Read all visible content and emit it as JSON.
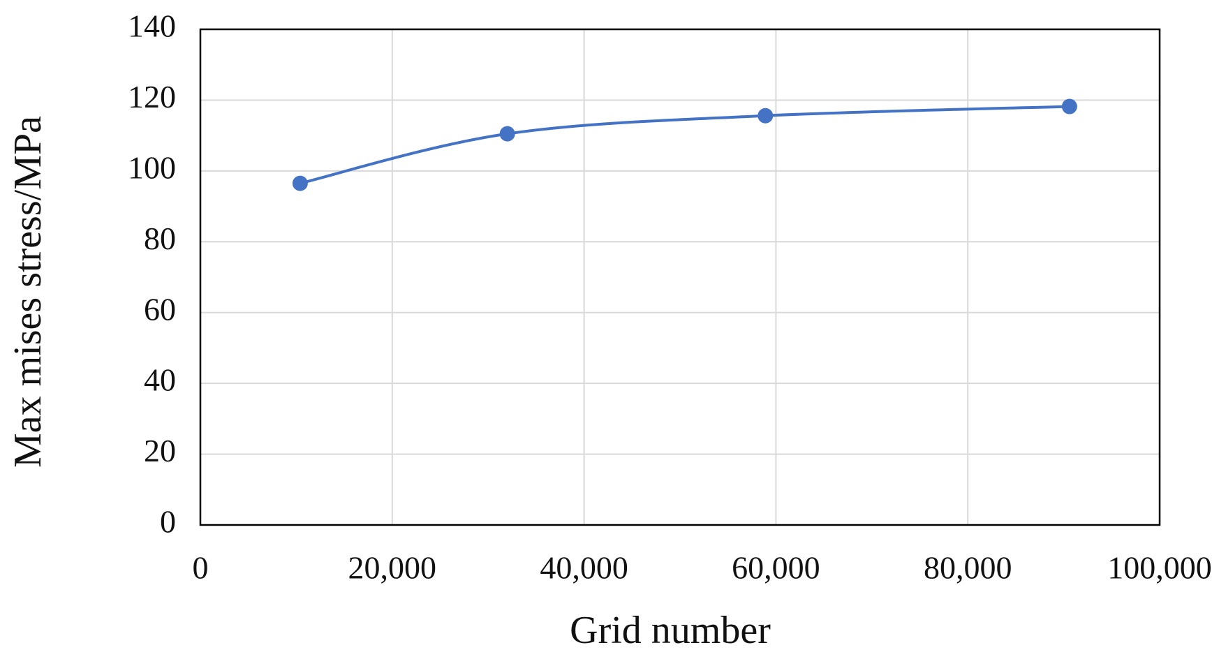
{
  "chart_data": {
    "type": "line",
    "x_label": "Grid number",
    "y_label": "Max mises stress/MPa",
    "x": [
      10400,
      32000,
      58900,
      90600
    ],
    "series": [
      {
        "name": "Max mises stress",
        "color": "#4472c4",
        "values": [
          96.5,
          110.5,
          115.6,
          118.2
        ]
      }
    ],
    "xlim": [
      0,
      100000
    ],
    "xticks": [
      0,
      {
        "value": 20000,
        "label": "20,000"
      },
      {
        "value": 40000,
        "label": "40,000"
      },
      {
        "value": 60000,
        "label": "60,000"
      },
      {
        "value": 80000,
        "label": "80,000"
      },
      {
        "value": 100000,
        "label": "100,000"
      }
    ],
    "ylim": [
      0,
      140
    ],
    "yticks": [
      0,
      20,
      40,
      60,
      80,
      100,
      120,
      140
    ],
    "grid": true,
    "smooth": true
  }
}
